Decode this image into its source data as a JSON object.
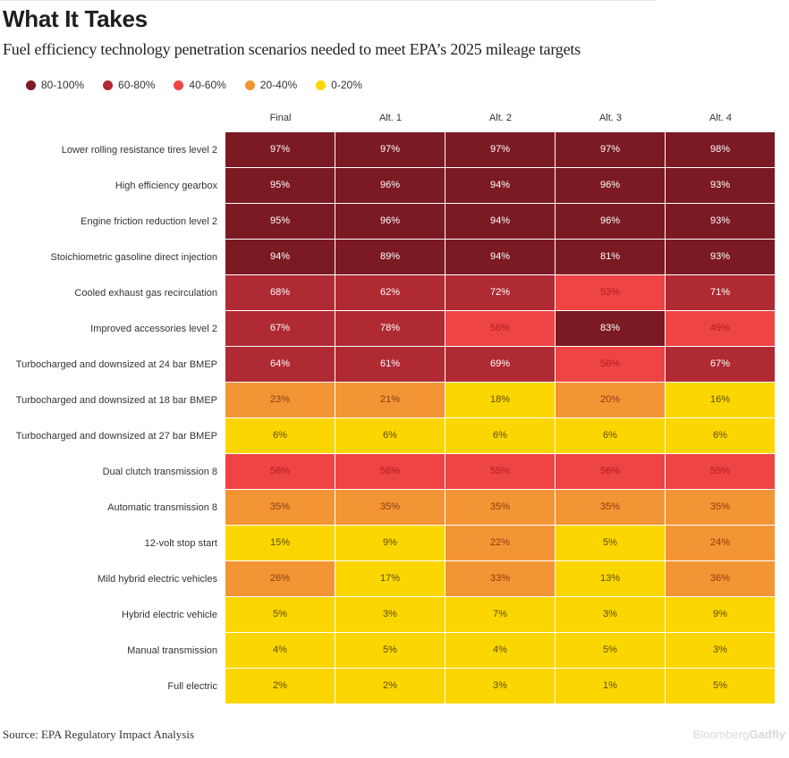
{
  "title": "What It Takes",
  "subtitle": "Fuel efficiency technology penetration scenarios needed to meet EPA’s 2025 mileage targets",
  "legend": [
    {
      "label": "80-100%",
      "color": "#7b1a23"
    },
    {
      "label": "60-80%",
      "color": "#b02a33"
    },
    {
      "label": "40-60%",
      "color": "#ee4444"
    },
    {
      "label": "20-40%",
      "color": "#f49535"
    },
    {
      "label": "0-20%",
      "color": "#fcd600"
    }
  ],
  "source": "Source: EPA Regulatory Impact Analysis",
  "brand": {
    "part1": "Bloomberg",
    "part2": "Gadfly"
  },
  "chart_data": {
    "type": "heatmap",
    "title": "What It Takes",
    "columns": [
      "Final",
      "Alt. 1",
      "Alt. 2",
      "Alt. 3",
      "Alt. 4"
    ],
    "rows": [
      {
        "label": "Lower rolling resistance tires level 2",
        "values": [
          97,
          97,
          97,
          97,
          98
        ]
      },
      {
        "label": "High efficiency gearbox",
        "values": [
          95,
          96,
          94,
          96,
          93
        ]
      },
      {
        "label": "Engine friction reduction level 2",
        "values": [
          95,
          96,
          94,
          96,
          93
        ]
      },
      {
        "label": "Stoichiometric gasoline direct injection",
        "values": [
          94,
          89,
          94,
          81,
          93
        ]
      },
      {
        "label": "Cooled exhaust gas recirculation",
        "values": [
          68,
          62,
          72,
          53,
          71
        ]
      },
      {
        "label": "Improved accessories level 2",
        "values": [
          67,
          78,
          56,
          83,
          49
        ]
      },
      {
        "label": "Turbocharged and downsized at 24 bar BMEP",
        "values": [
          64,
          61,
          69,
          56,
          67
        ]
      },
      {
        "label": "Turbocharged and downsized at 18 bar BMEP",
        "values": [
          23,
          21,
          18,
          20,
          16
        ]
      },
      {
        "label": "Turbocharged and downsized at 27 bar BMEP",
        "values": [
          6,
          6,
          6,
          6,
          6
        ]
      },
      {
        "label": "Dual clutch transmission 8",
        "values": [
          56,
          56,
          55,
          56,
          55
        ]
      },
      {
        "label": "Automatic transmission 8",
        "values": [
          35,
          35,
          35,
          35,
          35
        ]
      },
      {
        "label": "12-volt stop start",
        "values": [
          15,
          9,
          22,
          5,
          24
        ]
      },
      {
        "label": "Mild hybrid electric vehicles",
        "values": [
          26,
          17,
          33,
          13,
          36
        ]
      },
      {
        "label": "Hybrid electric vehicle",
        "values": [
          5,
          3,
          7,
          3,
          9
        ]
      },
      {
        "label": "Manual transmission",
        "values": [
          4,
          5,
          4,
          5,
          3
        ]
      },
      {
        "label": "Full electric",
        "values": [
          2,
          2,
          3,
          1,
          5
        ]
      }
    ],
    "value_suffix": "%"
  }
}
